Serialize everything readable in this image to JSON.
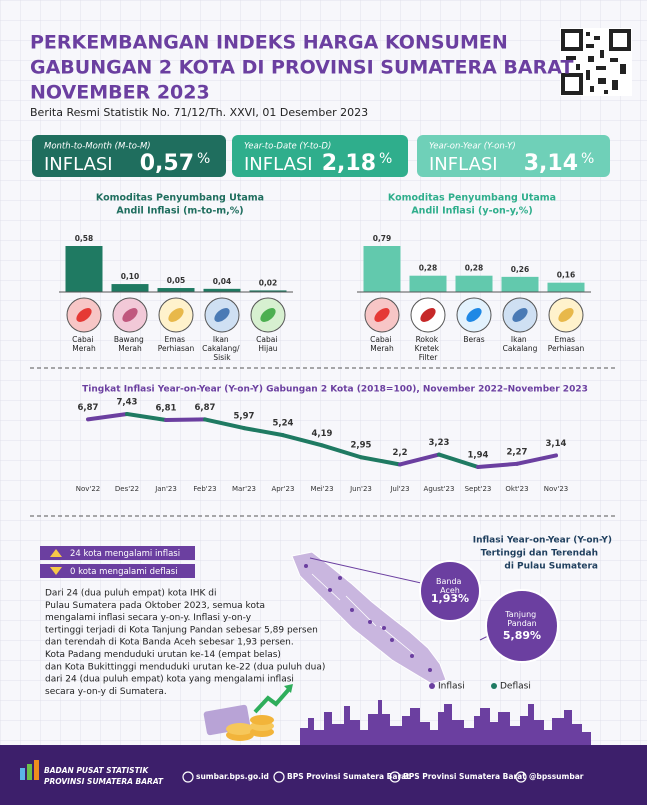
{
  "header": {
    "title_lines": [
      "PERKEMBANGAN INDEKS HARGA KONSUMEN",
      "GABUNGAN 2 KOTA DI PROVINSI SUMATERA BARAT",
      "NOVEMBER 2023"
    ],
    "subtitle": "Berita Resmi Statistik No. 71/12/Th. XXVI, 01 Desember 2023"
  },
  "kpis": [
    {
      "period": "Month-to-Month (M-to-M)",
      "label": "INFLASI",
      "value": "0,57",
      "unit": "%"
    },
    {
      "period": "Year-to-Date (Y-to-D)",
      "label": "INFLASI",
      "value": "2,18",
      "unit": "%"
    },
    {
      "period": "Year-on-Year (Y-on-Y)",
      "label": "INFLASI",
      "value": "3,14",
      "unit": "%"
    }
  ],
  "chart_data": [
    {
      "type": "bar",
      "title": "Komoditas Penyumbang Utama",
      "subtitle": "Andil Inflasi (m-to-m,%)",
      "categories": [
        "Cabai Merah",
        "Bawang Merah",
        "Emas Perhiasan",
        "Ikan Cakalang/ Sisik",
        "Cabai Hijau"
      ],
      "values": [
        0.58,
        0.1,
        0.05,
        0.04,
        0.02
      ],
      "value_labels": [
        "0,58",
        "0,10",
        "0,05",
        "0,04",
        "0,02"
      ],
      "color": "#1f7a62"
    },
    {
      "type": "bar",
      "title": "Komoditas Penyumbang Utama",
      "subtitle": "Andil Inflasi (y-on-y,%)",
      "categories": [
        "Cabai Merah",
        "Rokok Kretek Filter",
        "Beras",
        "Ikan Cakalang",
        "Emas Perhiasan"
      ],
      "values": [
        0.79,
        0.28,
        0.28,
        0.26,
        0.16
      ],
      "value_labels": [
        "0,79",
        "0,28",
        "0,28",
        "0,26",
        "0,16"
      ],
      "color": "#62c9ad"
    },
    {
      "type": "line",
      "title": "Tingkat Inflasi Year-on-Year (Y-on-Y) Gabungan 2 Kota (2018=100), November 2022–November 2023",
      "categories": [
        "Nov'22",
        "Des'22",
        "Jan'23",
        "Feb'23",
        "Mar'23",
        "Apr'23",
        "Mei'23",
        "Jun'23",
        "Jul'23",
        "Agust'23",
        "Sept'23",
        "Okt'23",
        "Nov'23"
      ],
      "values": [
        6.87,
        7.43,
        6.81,
        6.87,
        5.97,
        5.24,
        4.19,
        2.95,
        2.2,
        3.23,
        1.94,
        2.27,
        3.14
      ],
      "value_labels": [
        "6,87",
        "7,43",
        "6,81",
        "6,87",
        "5,97",
        "5,24",
        "4,19",
        "2,95",
        "2,2",
        "3,23",
        "1,94",
        "2,27",
        "3,14"
      ],
      "colors": {
        "rise": "#6b3fa0",
        "fall": "#1f7a62"
      }
    }
  ],
  "legend_pills": [
    "24 kota mengalami inflasi",
    "0 kota mengalami deflasi"
  ],
  "paragraph": [
    "Dari 24 (dua puluh empat) kota IHK di",
    "Pulau Sumatera pada Oktober 2023, semua kota",
    "mengalami inflasi secara y-on-y. Inflasi y-on-y",
    "tertinggi terjadi di Kota Tanjung Pandan sebesar 5,89 persen",
    "dan terendah di Kota Banda Aceh sebesar 1,93 persen.",
    "Kota Padang menduduki urutan ke-14 (empat belas)",
    "dan Kota Bukittinggi menduduki urutan ke-22 (dua puluh dua)",
    "dari 24 (dua puluh empat) kota yang mengalami inflasi",
    "secara y-on-y di Sumatera."
  ],
  "map": {
    "title_lines": [
      "Inflasi Year-on-Year (Y-on-Y)",
      "Tertinggi dan Terendah",
      "di Pulau Sumatera"
    ],
    "callouts": [
      {
        "city": "Banda Aceh",
        "value": "1,93%"
      },
      {
        "city": "Tanjung Pandan",
        "value": "5,89%"
      }
    ],
    "legend": [
      "Inflasi",
      "Deflasi"
    ]
  },
  "footer": {
    "org_lines": [
      "BADAN PUSAT STATISTIK",
      "PROVINSI SUMATERA BARAT"
    ],
    "links": [
      "sumbar.bps.go.id",
      "BPS Provinsi Sumatera Barat",
      "BPS Provinsi Sumatera Barat",
      "@bpssumbar"
    ]
  }
}
